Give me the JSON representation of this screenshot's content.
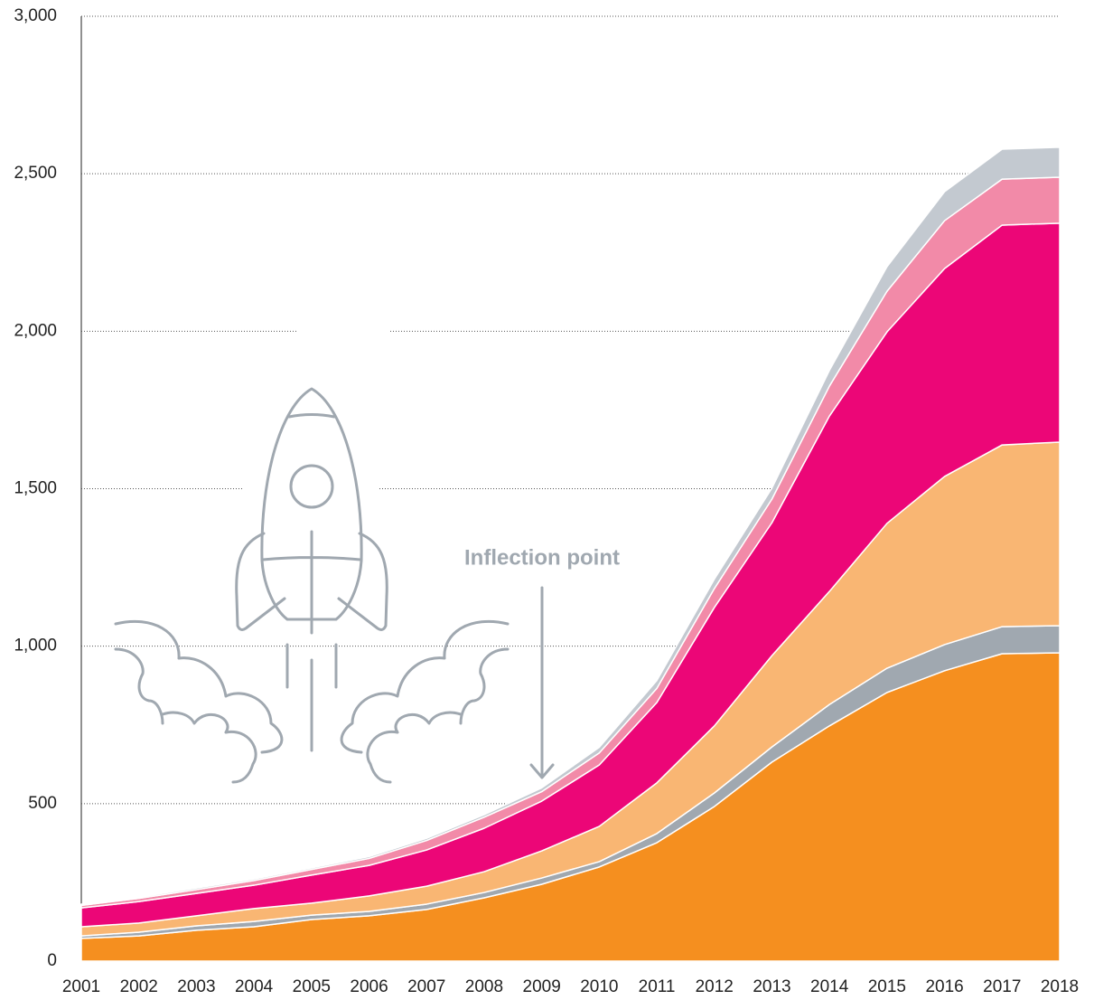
{
  "chart_data": {
    "type": "stacked_area",
    "annotation": "Inflection point",
    "categories": [
      "2001",
      "2002",
      "2003",
      "2004",
      "2005",
      "2006",
      "2007",
      "2008",
      "2009",
      "2010",
      "2011",
      "2012",
      "2013",
      "2014",
      "2015",
      "2016",
      "2017",
      "2018"
    ],
    "series": [
      {
        "color": "#f58f1f",
        "values": [
          72,
          80,
          98,
          109,
          132,
          144,
          164,
          201,
          244,
          299,
          376,
          491,
          632,
          747,
          853,
          922,
          976,
          979
        ]
      },
      {
        "color": "#a0a8b0",
        "values": [
          8,
          12,
          14,
          17,
          14,
          14,
          17,
          17,
          20,
          17,
          29,
          43,
          48,
          68,
          77,
          83,
          86,
          86
        ]
      },
      {
        "color": "#f9b673",
        "values": [
          29,
          29,
          32,
          41,
          38,
          49,
          57,
          66,
          86,
          112,
          161,
          213,
          290,
          359,
          460,
          534,
          577,
          583
        ]
      },
      {
        "color": "#ec0677",
        "values": [
          60,
          68,
          71,
          74,
          89,
          97,
          115,
          138,
          158,
          195,
          255,
          376,
          422,
          557,
          608,
          660,
          698,
          695
        ]
      },
      {
        "color": "#f28aa8",
        "values": [
          8,
          10,
          12,
          15,
          18,
          22,
          30,
          35,
          30,
          38,
          45,
          60,
          75,
          95,
          129,
          152,
          146,
          146
        ]
      },
      {
        "color": "#c3c9d0",
        "values": [
          4,
          4,
          5,
          5,
          5,
          6,
          7,
          8,
          12,
          18,
          25,
          30,
          35,
          50,
          78,
          92,
          95,
          95
        ]
      }
    ],
    "ylim": [
      0,
      3000
    ],
    "yticks": [
      0,
      500,
      {
        "value": 1000,
        "label": "1,000"
      },
      {
        "value": 1500,
        "label": "1,500"
      },
      {
        "value": 2000,
        "label": "2,000"
      },
      {
        "value": 2500,
        "label": "2,500"
      },
      {
        "value": 3000,
        "label": "3,000"
      }
    ],
    "grid": true
  }
}
